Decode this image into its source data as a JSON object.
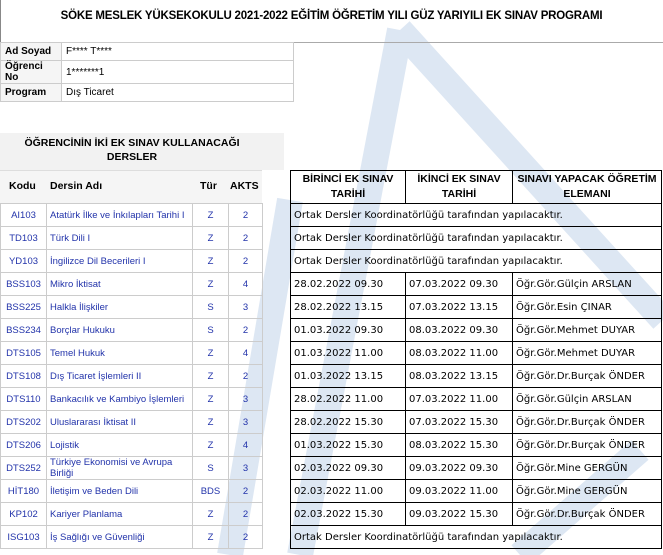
{
  "title": "SÖKE MESLEK YÜKSEKOKULU 2021-2022 EĞİTİM ÖĞRETİM YILI GÜZ YARIYILI EK SINAV PROGRAMI",
  "info": [
    {
      "label": "Ad Soyad",
      "value": "F**** T****"
    },
    {
      "label": "Öğrenci No",
      "value": "1*******1"
    },
    {
      "label": "Program",
      "value": "Dış Ticaret"
    }
  ],
  "courses_header": "ÖĞRENCİNİN İKİ EK SINAV KULLANACAĞI DERSLER",
  "course_columns": {
    "code": "Kodu",
    "name": "Dersin Adı",
    "type": "Tür",
    "ects": "AKTS"
  },
  "exam_columns": {
    "first": "BİRİNCİ EK SINAV TARİHİ",
    "second": "İKİNCİ EK SINAV TARİHİ",
    "instructor": "SINAVI YAPACAK ÖĞRETİM ELEMANI"
  },
  "rows": [
    {
      "code": "AI103",
      "name": "Atatürk İlke ve İnkılapları Tarihi I",
      "type": "Z",
      "ects": "2",
      "note": "Ortak Dersler Koordinatörlüğü tarafından yapılacaktır."
    },
    {
      "code": "TD103",
      "name": "Türk Dili I",
      "type": "Z",
      "ects": "2",
      "note": "Ortak Dersler Koordinatörlüğü tarafından yapılacaktır."
    },
    {
      "code": "YD103",
      "name": "İngilizce Dil Becerileri I",
      "type": "Z",
      "ects": "2",
      "note": "Ortak Dersler Koordinatörlüğü tarafından yapılacaktır."
    },
    {
      "code": "BSS103",
      "name": "Mikro İktisat",
      "type": "Z",
      "ects": "4",
      "first": "28.02.2022 09.30",
      "second": "07.03.2022 09.30",
      "instructor": "Öğr.Gör.Gülçin ARSLAN"
    },
    {
      "code": "BSS225",
      "name": "Halkla İlişkiler",
      "type": "S",
      "ects": "3",
      "first": "28.02.2022 13.15",
      "second": "07.03.2022 13.15",
      "instructor": "Öğr.Gör.Esin ÇINAR"
    },
    {
      "code": "BSS234",
      "name": "Borçlar Hukuku",
      "type": "S",
      "ects": "2",
      "first": "01.03.2022 09.30",
      "second": "08.03.2022 09.30",
      "instructor": "Öğr.Gör.Mehmet DUYAR"
    },
    {
      "code": "DTS105",
      "name": "Temel Hukuk",
      "type": "Z",
      "ects": "4",
      "first": "01.03.2022 11.00",
      "second": "08.03.2022 11.00",
      "instructor": "Öğr.Gör.Mehmet DUYAR"
    },
    {
      "code": "DTS108",
      "name": "Dış Ticaret İşlemleri II",
      "type": "Z",
      "ects": "2",
      "first": "01.03.2022 13.15",
      "second": "08.03.2022 13.15",
      "instructor": "Öğr.Gör.Dr.Burçak ÖNDER"
    },
    {
      "code": "DTS110",
      "name": "Bankacılık ve Kambiyo İşlemleri",
      "type": "Z",
      "ects": "3",
      "first": "28.02.2022 11.00",
      "second": "07.03.2022 11.00",
      "instructor": "Öğr.Gör.Gülçin ARSLAN"
    },
    {
      "code": "DTS202",
      "name": "Uluslararası İktisat II",
      "type": "Z",
      "ects": "3",
      "first": "28.02.2022 15.30",
      "second": "07.03.2022 15.30",
      "instructor": "Öğr.Gör.Dr.Burçak ÖNDER"
    },
    {
      "code": "DTS206",
      "name": "Lojistik",
      "type": "Z",
      "ects": "4",
      "first": "01.03.2022 15.30",
      "second": "08.03.2022 15.30",
      "instructor": "Öğr.Gör.Dr.Burçak ÖNDER"
    },
    {
      "code": "DTS252",
      "name": "Türkiye Ekonomisi ve Avrupa Birliği",
      "type": "S",
      "ects": "3",
      "first": "02.03.2022 09.30",
      "second": "09.03.2022 09.30",
      "instructor": "Öğr.Gör.Mine GERGÜN"
    },
    {
      "code": "HİT180",
      "name": "İletişim ve Beden Dili",
      "type": "BDS",
      "ects": "2",
      "first": "02.03.2022 11.00",
      "second": "09.03.2022 11.00",
      "instructor": "Öğr.Gör.Mine GERGÜN"
    },
    {
      "code": "KP102",
      "name": "Kariyer Planlama",
      "type": "Z",
      "ects": "2",
      "first": "02.03.2022 15.30",
      "second": "09.03.2022 15.30",
      "instructor": "Öğr.Gör.Dr.Burçak ÖNDER"
    },
    {
      "code": "ISG103",
      "name": "İş Sağlığı ve Güvenliği",
      "type": "Z",
      "ects": "2",
      "note": "Ortak Dersler Koordinatörlüğü tarafından yapılacaktır."
    }
  ],
  "colors": {
    "course_text": "#2233aa",
    "watermark": "#dbe6f3"
  }
}
